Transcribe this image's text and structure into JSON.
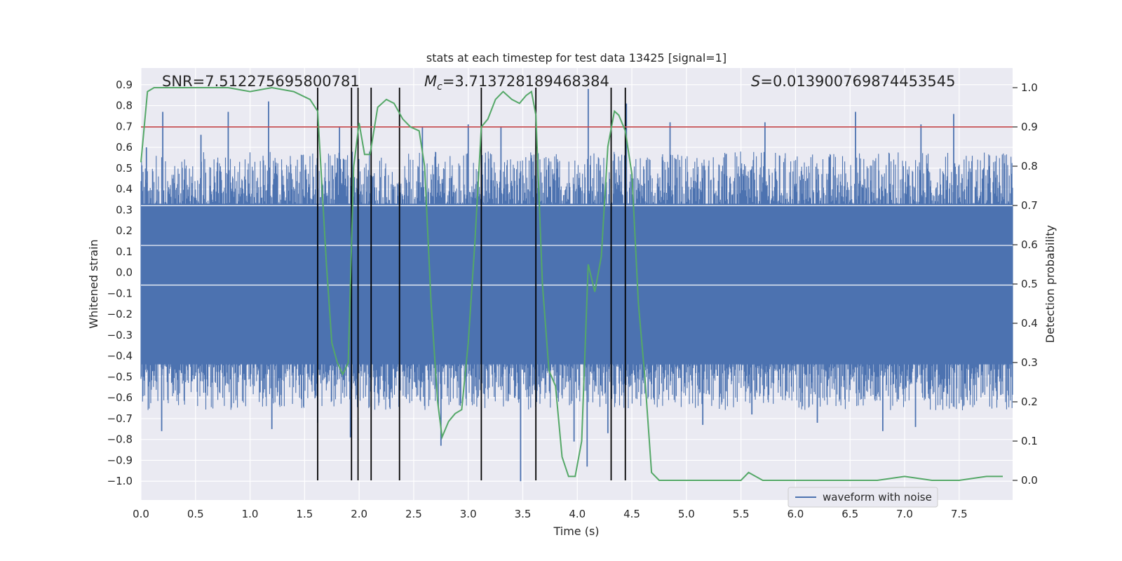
{
  "chart_data": {
    "type": "line",
    "title": "stats at each timestep for test data 13425 [signal=1]",
    "xlabel": "Time (s)",
    "ylabel": "Whitened strain",
    "ylabel_right": "Detection probability",
    "xlim": [
      0.0,
      7.99
    ],
    "ylim": [
      -1.09,
      0.98
    ],
    "ylim_right": [
      -0.05,
      1.05
    ],
    "xticks": [
      0.0,
      0.5,
      1.0,
      1.5,
      2.0,
      2.5,
      3.0,
      3.5,
      4.0,
      4.5,
      5.0,
      5.5,
      6.0,
      6.5,
      7.0,
      7.5
    ],
    "xtick_labels": [
      "0.0",
      "0.5",
      "1.0",
      "1.5",
      "2.0",
      "2.5",
      "3.0",
      "3.5",
      "4.0",
      "4.5",
      "5.0",
      "5.5",
      "6.0",
      "6.5",
      "7.0",
      "7.5"
    ],
    "yticks": [
      0.9,
      0.8,
      0.7,
      0.6,
      0.5,
      0.4,
      0.3,
      0.2,
      0.1,
      0.0,
      -0.1,
      -0.2,
      -0.3,
      -0.4,
      -0.5,
      -0.6,
      -0.7,
      -0.8,
      -0.9,
      -1.0
    ],
    "ytick_labels": [
      "0.9",
      "0.8",
      "0.7",
      "0.6",
      "0.5",
      "0.4",
      "0.3",
      "0.2",
      "0.1",
      "0.0",
      "−0.1",
      "−0.2",
      "−0.3",
      "−0.4",
      "−0.5",
      "−0.6",
      "−0.7",
      "−0.8",
      "−0.9",
      "−1.0"
    ],
    "yticks_right": [
      1.0,
      0.9,
      0.8,
      0.7,
      0.6,
      0.5,
      0.4,
      0.3,
      0.2,
      0.1,
      0.0
    ],
    "ytick_labels_right": [
      "1.0",
      "0.9",
      "0.8",
      "0.7",
      "0.6",
      "0.5",
      "0.4",
      "0.3",
      "0.2",
      "0.1",
      "0.0"
    ],
    "annotations": {
      "snr": "SNR=7.512275695800781",
      "mc_symbol": "M",
      "mc_subscript": "c",
      "mc_value": "=3.713728189468384",
      "s_symbol": "S",
      "s_value": "=0.013900769874453545"
    },
    "legend": {
      "label": "waveform with noise",
      "position": "bottom-right"
    },
    "threshold": {
      "value": 0.9,
      "axis": "right",
      "color": "#c44e52"
    },
    "event_lines": {
      "x": [
        1.62,
        1.93,
        1.99,
        2.11,
        2.37,
        3.12,
        3.62,
        4.31,
        4.44
      ],
      "color": "#000000"
    },
    "series": [
      {
        "name": "waveform with noise",
        "axis": "left",
        "color": "#4c72b0",
        "bulk_upper": 0.33,
        "bulk_lower": -0.44,
        "duration": 7.99,
        "peaks": [
          [
            0.05,
            0.6
          ],
          [
            0.2,
            0.77
          ],
          [
            0.55,
            0.66
          ],
          [
            0.8,
            0.77
          ],
          [
            1.17,
            0.82
          ],
          [
            1.82,
            0.7
          ],
          [
            2.58,
            0.7
          ],
          [
            3.0,
            0.71
          ],
          [
            3.3,
            0.7
          ],
          [
            4.1,
            0.88
          ],
          [
            4.45,
            0.81
          ],
          [
            4.85,
            0.72
          ],
          [
            5.72,
            0.72
          ],
          [
            6.55,
            0.77
          ],
          [
            7.15,
            0.71
          ],
          [
            7.45,
            0.76
          ]
        ],
        "troughs": [
          [
            0.19,
            -0.76
          ],
          [
            1.2,
            -0.75
          ],
          [
            1.62,
            -0.72
          ],
          [
            1.92,
            -0.79
          ],
          [
            2.75,
            -0.83
          ],
          [
            3.48,
            -1.0
          ],
          [
            3.97,
            -0.81
          ],
          [
            4.09,
            -0.93
          ],
          [
            4.28,
            -0.77
          ],
          [
            5.15,
            -0.73
          ],
          [
            5.6,
            -0.68
          ],
          [
            6.2,
            -0.72
          ],
          [
            6.8,
            -0.76
          ],
          [
            7.1,
            -0.74
          ]
        ]
      },
      {
        "name": "detection probability",
        "axis": "right",
        "color": "#55a868",
        "x": [
          0.0,
          0.06,
          0.12,
          0.25,
          0.5,
          0.8,
          1.0,
          1.2,
          1.4,
          1.55,
          1.62,
          1.7,
          1.75,
          1.8,
          1.85,
          1.9,
          1.95,
          2.0,
          2.05,
          2.1,
          2.17,
          2.25,
          2.32,
          2.4,
          2.47,
          2.55,
          2.6,
          2.66,
          2.72,
          2.76,
          2.82,
          2.88,
          2.94,
          3.0,
          3.06,
          3.12,
          3.18,
          3.25,
          3.32,
          3.4,
          3.47,
          3.53,
          3.58,
          3.62,
          3.68,
          3.74,
          3.8,
          3.86,
          3.92,
          3.98,
          4.04,
          4.1,
          4.16,
          4.22,
          4.28,
          4.34,
          4.38,
          4.44,
          4.5,
          4.56,
          4.62,
          4.68,
          4.75,
          5.0,
          5.25,
          5.5,
          5.57,
          5.7,
          6.0,
          6.25,
          6.5,
          6.75,
          7.0,
          7.25,
          7.5,
          7.75,
          7.9
        ],
        "y": [
          0.81,
          0.99,
          1.0,
          1.0,
          1.0,
          1.0,
          0.99,
          1.0,
          0.99,
          0.97,
          0.94,
          0.55,
          0.35,
          0.3,
          0.27,
          0.3,
          0.8,
          0.91,
          0.83,
          0.83,
          0.95,
          0.97,
          0.96,
          0.92,
          0.9,
          0.89,
          0.8,
          0.45,
          0.2,
          0.11,
          0.15,
          0.17,
          0.18,
          0.35,
          0.6,
          0.9,
          0.92,
          0.97,
          0.99,
          0.97,
          0.96,
          0.98,
          0.99,
          0.93,
          0.5,
          0.28,
          0.24,
          0.06,
          0.01,
          0.01,
          0.1,
          0.55,
          0.48,
          0.57,
          0.85,
          0.94,
          0.93,
          0.89,
          0.78,
          0.45,
          0.26,
          0.02,
          0.0,
          0.0,
          0.0,
          0.0,
          0.02,
          0.0,
          0.0,
          0.0,
          0.0,
          0.0,
          0.01,
          0.0,
          0.0,
          0.01,
          0.01
        ]
      }
    ]
  }
}
